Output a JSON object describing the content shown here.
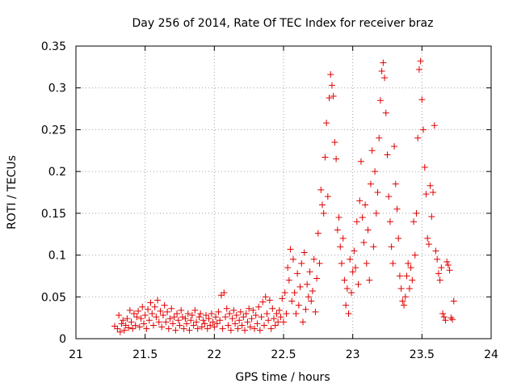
{
  "chart_data": {
    "type": "scatter",
    "title": "Day 256 of 2014, Rate Of TEC Index for receiver braz",
    "xlabel": "GPS time / hours",
    "ylabel": "ROTI / TECUs",
    "xlim": [
      21,
      24
    ],
    "ylim": [
      0,
      0.35
    ],
    "x_ticks": [
      "21",
      "21.5",
      "22",
      "22.5",
      "23",
      "23.5",
      "24"
    ],
    "y_ticks": [
      "0",
      "0.05",
      "0.1",
      "0.15",
      "0.2",
      "0.25",
      "0.3",
      "0.35"
    ],
    "grid": true,
    "marker": "+",
    "color": "#e00000",
    "series": [
      {
        "name": "braz",
        "points": [
          [
            21.28,
            0.015
          ],
          [
            21.3,
            0.012
          ],
          [
            21.31,
            0.028
          ],
          [
            21.32,
            0.008
          ],
          [
            21.33,
            0.018
          ],
          [
            21.34,
            0.022
          ],
          [
            21.35,
            0.01
          ],
          [
            21.36,
            0.016
          ],
          [
            21.37,
            0.024
          ],
          [
            21.38,
            0.013
          ],
          [
            21.39,
            0.034
          ],
          [
            21.4,
            0.02
          ],
          [
            21.41,
            0.012
          ],
          [
            21.42,
            0.03
          ],
          [
            21.43,
            0.016
          ],
          [
            21.44,
            0.026
          ],
          [
            21.45,
            0.033
          ],
          [
            21.46,
            0.014
          ],
          [
            21.47,
            0.024
          ],
          [
            21.48,
            0.038
          ],
          [
            21.49,
            0.018
          ],
          [
            21.5,
            0.028
          ],
          [
            21.51,
            0.012
          ],
          [
            21.52,
            0.035
          ],
          [
            21.53,
            0.022
          ],
          [
            21.54,
            0.043
          ],
          [
            21.55,
            0.03
          ],
          [
            21.56,
            0.016
          ],
          [
            21.57,
            0.038
          ],
          [
            21.58,
            0.026
          ],
          [
            21.59,
            0.046
          ],
          [
            21.6,
            0.02
          ],
          [
            21.61,
            0.033
          ],
          [
            21.62,
            0.014
          ],
          [
            21.63,
            0.028
          ],
          [
            21.64,
            0.04
          ],
          [
            21.65,
            0.02
          ],
          [
            21.66,
            0.032
          ],
          [
            21.67,
            0.012
          ],
          [
            21.68,
            0.024
          ],
          [
            21.69,
            0.036
          ],
          [
            21.7,
            0.018
          ],
          [
            21.71,
            0.026
          ],
          [
            21.72,
            0.01
          ],
          [
            21.73,
            0.03
          ],
          [
            21.74,
            0.022
          ],
          [
            21.75,
            0.016
          ],
          [
            21.76,
            0.034
          ],
          [
            21.77,
            0.026
          ],
          [
            21.78,
            0.012
          ],
          [
            21.79,
            0.024
          ],
          [
            21.8,
            0.018
          ],
          [
            21.81,
            0.03
          ],
          [
            21.82,
            0.01
          ],
          [
            21.83,
            0.022
          ],
          [
            21.84,
            0.028
          ],
          [
            21.85,
            0.016
          ],
          [
            21.86,
            0.034
          ],
          [
            21.87,
            0.02
          ],
          [
            21.88,
            0.012
          ],
          [
            21.89,
            0.026
          ],
          [
            21.9,
            0.03
          ],
          [
            21.91,
            0.014
          ],
          [
            21.92,
            0.022
          ],
          [
            21.93,
            0.018
          ],
          [
            21.94,
            0.028
          ],
          [
            21.95,
            0.012
          ],
          [
            21.96,
            0.024
          ],
          [
            21.97,
            0.016
          ],
          [
            21.98,
            0.03
          ],
          [
            21.99,
            0.02
          ],
          [
            22.0,
            0.014
          ],
          [
            22.01,
            0.026
          ],
          [
            22.02,
            0.018
          ],
          [
            22.03,
            0.032
          ],
          [
            22.04,
            0.022
          ],
          [
            22.05,
            0.052
          ],
          [
            22.06,
            0.012
          ],
          [
            22.07,
            0.055
          ],
          [
            22.08,
            0.026
          ],
          [
            22.09,
            0.036
          ],
          [
            22.1,
            0.016
          ],
          [
            22.11,
            0.03
          ],
          [
            22.12,
            0.01
          ],
          [
            22.13,
            0.024
          ],
          [
            22.14,
            0.034
          ],
          [
            22.15,
            0.018
          ],
          [
            22.16,
            0.028
          ],
          [
            22.17,
            0.012
          ],
          [
            22.18,
            0.022
          ],
          [
            22.19,
            0.032
          ],
          [
            22.2,
            0.016
          ],
          [
            22.21,
            0.026
          ],
          [
            22.22,
            0.01
          ],
          [
            22.23,
            0.03
          ],
          [
            22.24,
            0.02
          ],
          [
            22.25,
            0.036
          ],
          [
            22.26,
            0.014
          ],
          [
            22.27,
            0.024
          ],
          [
            22.28,
            0.034
          ],
          [
            22.29,
            0.012
          ],
          [
            22.3,
            0.028
          ],
          [
            22.31,
            0.018
          ],
          [
            22.32,
            0.038
          ],
          [
            22.33,
            0.01
          ],
          [
            22.34,
            0.026
          ],
          [
            22.35,
            0.044
          ],
          [
            22.36,
            0.016
          ],
          [
            22.37,
            0.05
          ],
          [
            22.38,
            0.03
          ],
          [
            22.39,
            0.022
          ],
          [
            22.4,
            0.046
          ],
          [
            22.41,
            0.012
          ],
          [
            22.42,
            0.036
          ],
          [
            22.43,
            0.024
          ],
          [
            22.44,
            0.016
          ],
          [
            22.45,
            0.03
          ],
          [
            22.46,
            0.02
          ],
          [
            22.47,
            0.034
          ],
          [
            22.48,
            0.026
          ],
          [
            22.49,
            0.048
          ],
          [
            22.5,
            0.02
          ],
          [
            22.51,
            0.055
          ],
          [
            22.52,
            0.03
          ],
          [
            22.53,
            0.085
          ],
          [
            22.54,
            0.07
          ],
          [
            22.55,
            0.107
          ],
          [
            22.56,
            0.045
          ],
          [
            22.57,
            0.095
          ],
          [
            22.58,
            0.055
          ],
          [
            22.59,
            0.03
          ],
          [
            22.6,
            0.078
          ],
          [
            22.61,
            0.04
          ],
          [
            22.62,
            0.062
          ],
          [
            22.63,
            0.09
          ],
          [
            22.64,
            0.02
          ],
          [
            22.65,
            0.103
          ],
          [
            22.66,
            0.035
          ],
          [
            22.67,
            0.065
          ],
          [
            22.68,
            0.05
          ],
          [
            22.69,
            0.08
          ],
          [
            22.7,
            0.045
          ],
          [
            22.71,
            0.057
          ],
          [
            22.72,
            0.095
          ],
          [
            22.73,
            0.032
          ],
          [
            22.74,
            0.072
          ],
          [
            22.75,
            0.126
          ],
          [
            22.76,
            0.09
          ],
          [
            22.77,
            0.178
          ],
          [
            22.78,
            0.16
          ],
          [
            22.79,
            0.15
          ],
          [
            22.8,
            0.217
          ],
          [
            22.81,
            0.258
          ],
          [
            22.82,
            0.17
          ],
          [
            22.83,
            0.288
          ],
          [
            22.84,
            0.316
          ],
          [
            22.85,
            0.303
          ],
          [
            22.86,
            0.29
          ],
          [
            22.87,
            0.235
          ],
          [
            22.88,
            0.215
          ],
          [
            22.89,
            0.13
          ],
          [
            22.9,
            0.145
          ],
          [
            22.91,
            0.11
          ],
          [
            22.92,
            0.09
          ],
          [
            22.93,
            0.12
          ],
          [
            22.94,
            0.07
          ],
          [
            22.95,
            0.04
          ],
          [
            22.96,
            0.06
          ],
          [
            22.97,
            0.03
          ],
          [
            22.98,
            0.095
          ],
          [
            22.99,
            0.055
          ],
          [
            23.0,
            0.08
          ],
          [
            23.01,
            0.105
          ],
          [
            23.02,
            0.085
          ],
          [
            23.03,
            0.14
          ],
          [
            23.04,
            0.065
          ],
          [
            23.05,
            0.165
          ],
          [
            23.06,
            0.212
          ],
          [
            23.07,
            0.145
          ],
          [
            23.08,
            0.115
          ],
          [
            23.09,
            0.16
          ],
          [
            23.1,
            0.09
          ],
          [
            23.11,
            0.13
          ],
          [
            23.12,
            0.07
          ],
          [
            23.13,
            0.185
          ],
          [
            23.14,
            0.225
          ],
          [
            23.15,
            0.11
          ],
          [
            23.16,
            0.2
          ],
          [
            23.17,
            0.15
          ],
          [
            23.18,
            0.175
          ],
          [
            23.19,
            0.24
          ],
          [
            23.2,
            0.285
          ],
          [
            23.21,
            0.32
          ],
          [
            23.22,
            0.33
          ],
          [
            23.23,
            0.312
          ],
          [
            23.24,
            0.27
          ],
          [
            23.25,
            0.22
          ],
          [
            23.26,
            0.17
          ],
          [
            23.27,
            0.14
          ],
          [
            23.28,
            0.11
          ],
          [
            23.29,
            0.09
          ],
          [
            23.3,
            0.23
          ],
          [
            23.31,
            0.185
          ],
          [
            23.32,
            0.155
          ],
          [
            23.33,
            0.12
          ],
          [
            23.34,
            0.075
          ],
          [
            23.35,
            0.06
          ],
          [
            23.36,
            0.045
          ],
          [
            23.37,
            0.04
          ],
          [
            23.38,
            0.05
          ],
          [
            23.39,
            0.075
          ],
          [
            23.4,
            0.09
          ],
          [
            23.41,
            0.06
          ],
          [
            23.42,
            0.085
          ],
          [
            23.43,
            0.07
          ],
          [
            23.44,
            0.14
          ],
          [
            23.45,
            0.1
          ],
          [
            23.46,
            0.15
          ],
          [
            23.47,
            0.24
          ],
          [
            23.48,
            0.322
          ],
          [
            23.49,
            0.332
          ],
          [
            23.5,
            0.286
          ],
          [
            23.51,
            0.25
          ],
          [
            23.52,
            0.205
          ],
          [
            23.53,
            0.173
          ],
          [
            23.54,
            0.12
          ],
          [
            23.55,
            0.113
          ],
          [
            23.56,
            0.183
          ],
          [
            23.57,
            0.146
          ],
          [
            23.58,
            0.175
          ],
          [
            23.59,
            0.255
          ],
          [
            23.6,
            0.105
          ],
          [
            23.61,
            0.095
          ],
          [
            23.62,
            0.078
          ],
          [
            23.63,
            0.07
          ],
          [
            23.64,
            0.085
          ],
          [
            23.65,
            0.03
          ],
          [
            23.66,
            0.026
          ],
          [
            23.67,
            0.022
          ],
          [
            23.68,
            0.092
          ],
          [
            23.69,
            0.088
          ],
          [
            23.7,
            0.082
          ],
          [
            23.71,
            0.025
          ],
          [
            23.72,
            0.023
          ],
          [
            23.73,
            0.045
          ]
        ]
      }
    ]
  }
}
